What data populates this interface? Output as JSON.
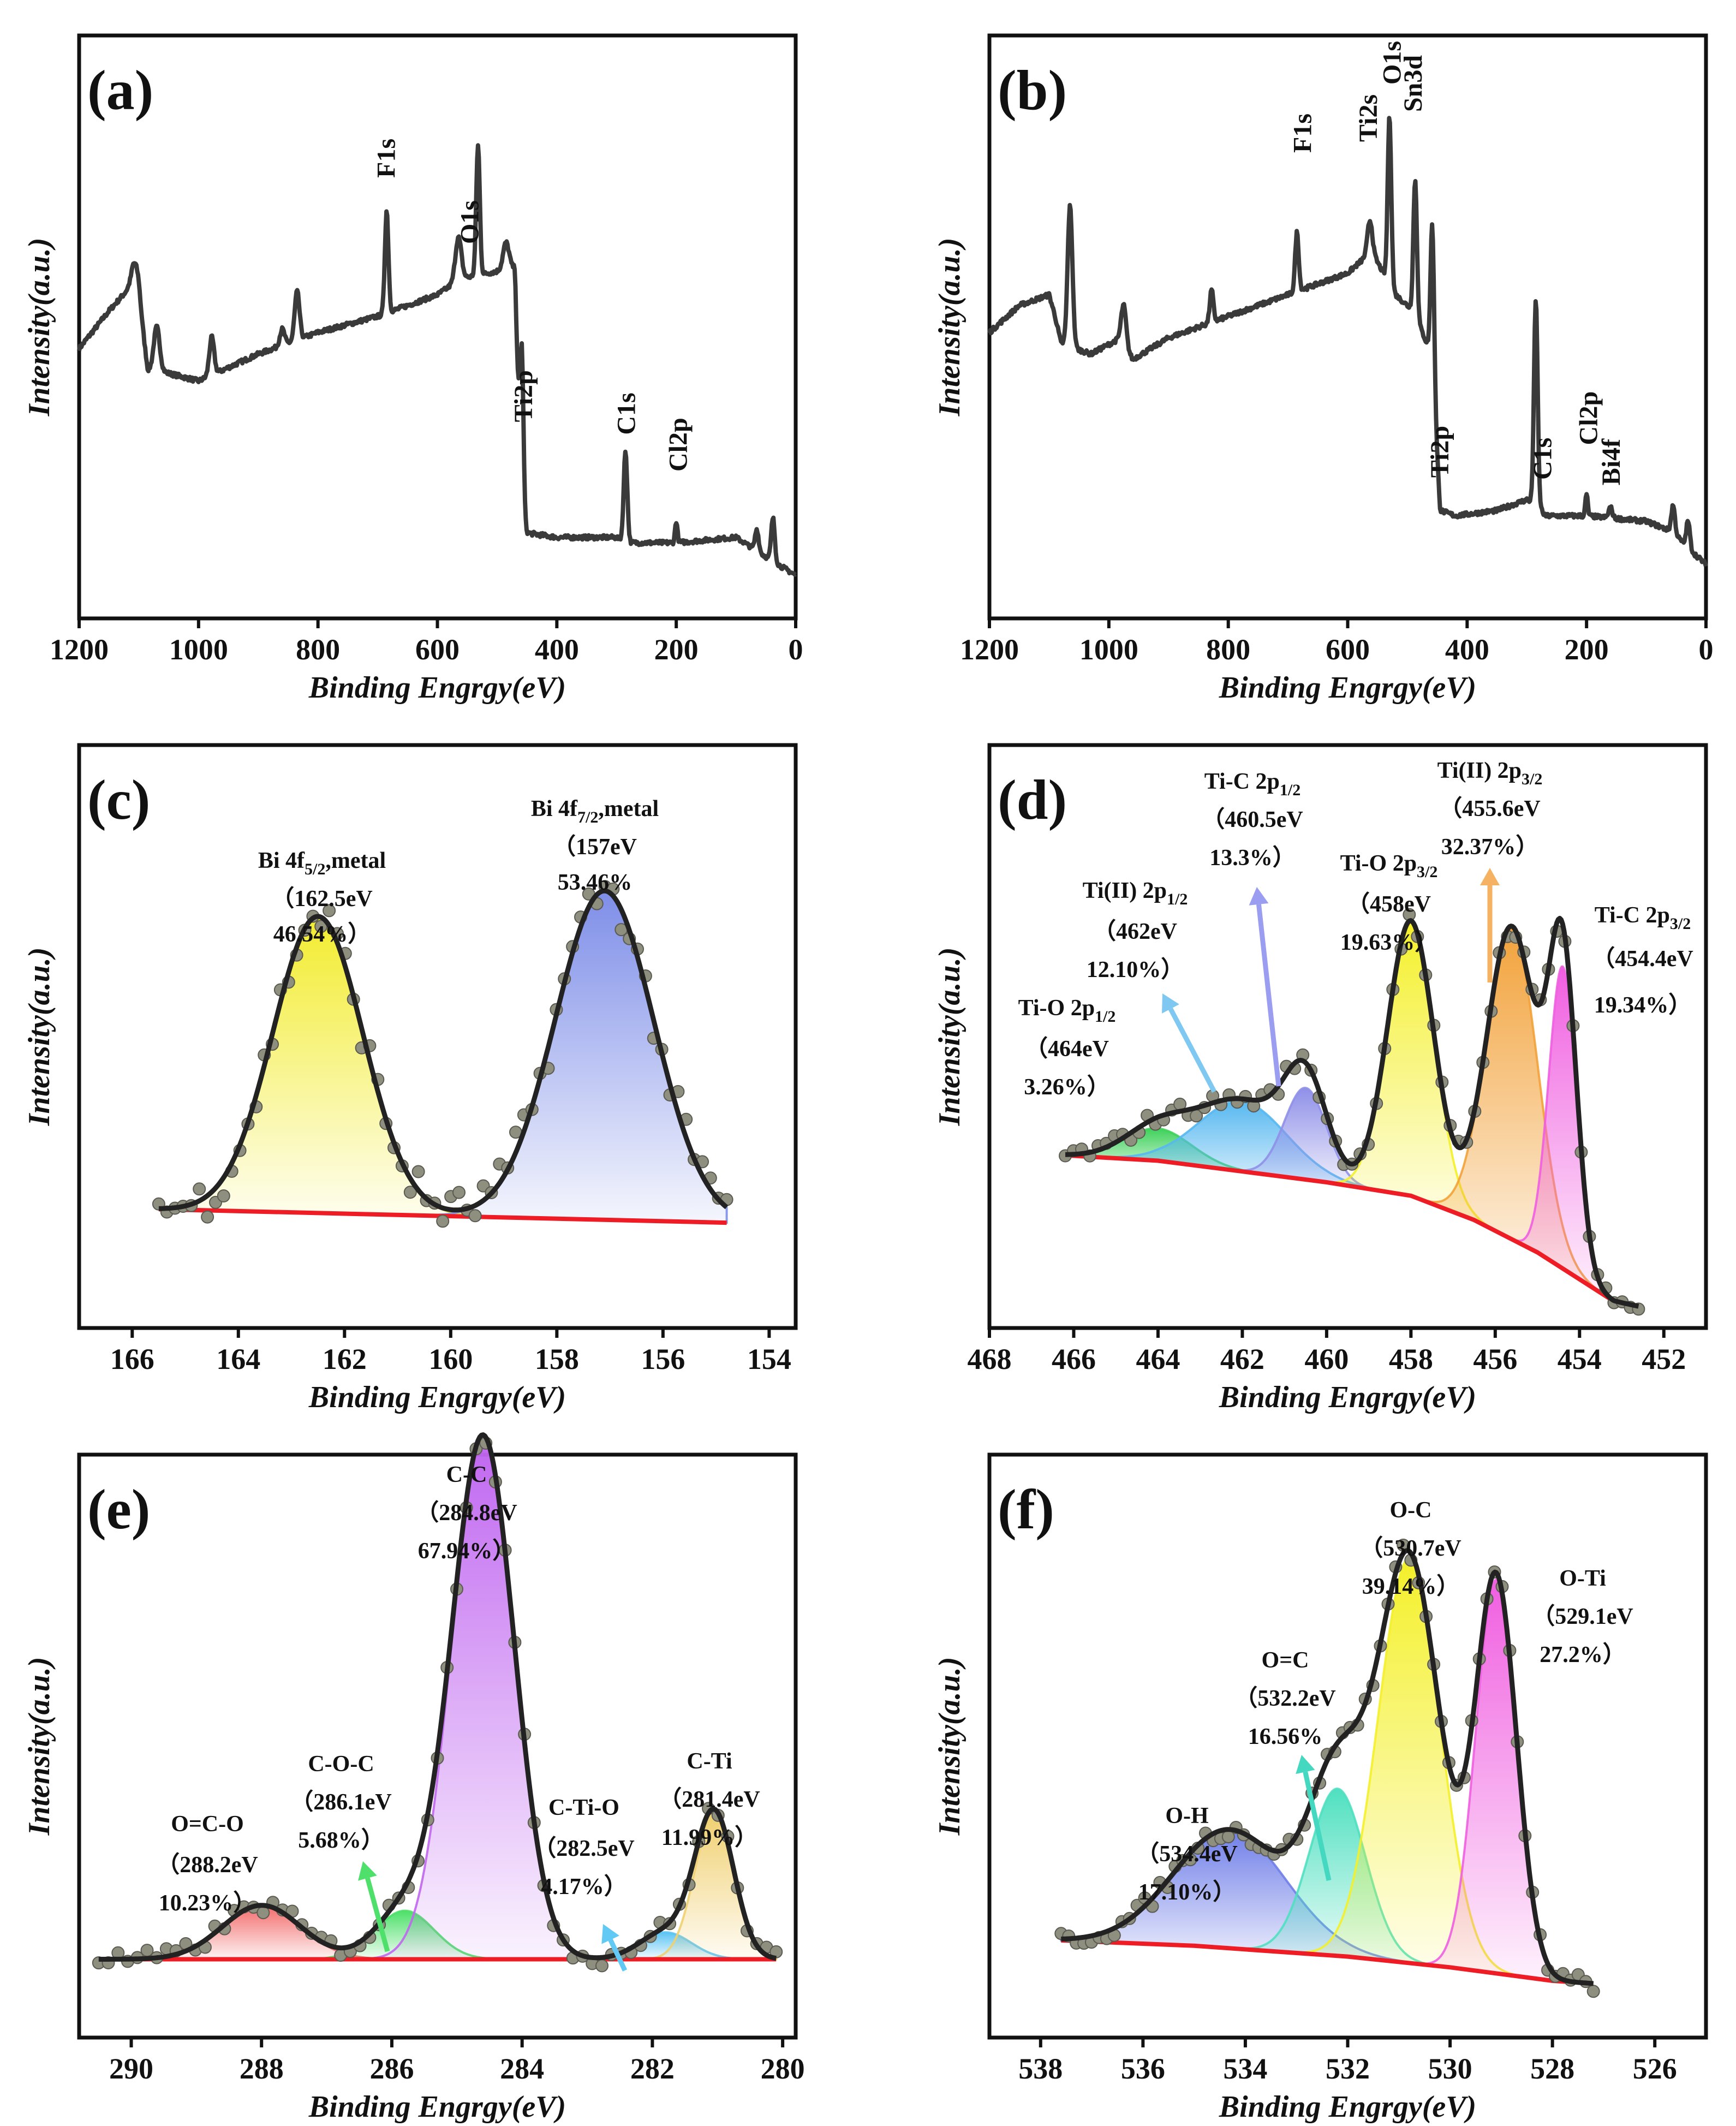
{
  "colors": {
    "survey": "#3a3a3a",
    "fit": "#222222",
    "baseline": "#ee1c25",
    "points": "#8f8f80"
  },
  "chart_data": [
    {
      "type": "line",
      "panel": "(a)",
      "xlabel": "Binding Engrgy(eV)",
      "ylabel": "Intensity(a.u.)",
      "xlim": [
        1200,
        0
      ],
      "ylim": [
        0,
        100
      ],
      "ticks": [
        1200,
        1000,
        800,
        600,
        400,
        200,
        0
      ],
      "tick_labels": [
        "1200",
        "1000",
        "800",
        "600",
        "400",
        "200",
        "0"
      ],
      "background": [
        [
          1200,
          48
        ],
        [
          1150,
          55
        ],
        [
          1110,
          60
        ],
        [
          1100,
          57
        ],
        [
          1085,
          44
        ],
        [
          1070,
          44
        ],
        [
          1000,
          42
        ],
        [
          900,
          47
        ],
        [
          800,
          51
        ],
        [
          700,
          54
        ],
        [
          600,
          58
        ],
        [
          560,
          61
        ],
        [
          470,
          63
        ],
        [
          460,
          14
        ],
        [
          400,
          13
        ],
        [
          300,
          13
        ],
        [
          285,
          12
        ],
        [
          200,
          12
        ],
        [
          100,
          13
        ],
        [
          30,
          8
        ],
        [
          0,
          6
        ]
      ],
      "peaks": [
        {
          "x": 1105,
          "h": 5,
          "w": 6
        },
        {
          "x": 1070,
          "h": 8,
          "w": 5
        },
        {
          "x": 978,
          "h": 7,
          "w": 4
        },
        {
          "x": 860,
          "h": 3,
          "w": 4
        },
        {
          "x": 835,
          "h": 9,
          "w": 4
        },
        {
          "x": 685,
          "h": 19,
          "w": 3
        },
        {
          "x": 565,
          "h": 8,
          "w": 5
        },
        {
          "x": 532,
          "h": 24,
          "w": 3
        },
        {
          "x": 485,
          "h": 5,
          "w": 5
        },
        {
          "x": 459,
          "h": 35,
          "w": 3
        },
        {
          "x": 285,
          "h": 17,
          "w": 3
        },
        {
          "x": 200,
          "h": 4,
          "w": 2
        },
        {
          "x": 65,
          "h": 4,
          "w": 3
        },
        {
          "x": 38,
          "h": 8,
          "w": 3
        }
      ],
      "peak_labels": [
        {
          "x": 685,
          "text": "F1s"
        },
        {
          "x": 545,
          "text": "O1s"
        },
        {
          "x": 455,
          "text": "Ti2p"
        },
        {
          "x": 283,
          "text": "C1s"
        },
        {
          "x": 196,
          "text": "Cl2p"
        }
      ]
    },
    {
      "type": "line",
      "panel": "(b)",
      "xlabel": "Binding Engrgy(eV)",
      "ylabel": "Intensity(a.u.)",
      "xlim": [
        1200,
        0
      ],
      "ylim": [
        0,
        100
      ],
      "ticks": [
        1200,
        1000,
        800,
        600,
        400,
        200,
        0
      ],
      "tick_labels": [
        "1200",
        "1000",
        "800",
        "600",
        "400",
        "200",
        "0"
      ],
      "background": [
        [
          1200,
          51
        ],
        [
          1150,
          56
        ],
        [
          1100,
          58
        ],
        [
          1090,
          54
        ],
        [
          1080,
          49
        ],
        [
          1030,
          47
        ],
        [
          980,
          50
        ],
        [
          960,
          46
        ],
        [
          900,
          50
        ],
        [
          800,
          54
        ],
        [
          700,
          58
        ],
        [
          600,
          62
        ],
        [
          560,
          66
        ],
        [
          520,
          58
        ],
        [
          490,
          55
        ],
        [
          460,
          47
        ],
        [
          445,
          18
        ],
        [
          420,
          17
        ],
        [
          350,
          18
        ],
        [
          300,
          20
        ],
        [
          280,
          19
        ],
        [
          270,
          17
        ],
        [
          200,
          17
        ],
        [
          100,
          16
        ],
        [
          55,
          14
        ],
        [
          30,
          11
        ],
        [
          0,
          8
        ]
      ],
      "peaks": [
        {
          "x": 1065,
          "h": 26,
          "w": 4
        },
        {
          "x": 975,
          "h": 7,
          "w": 4
        },
        {
          "x": 828,
          "h": 6,
          "w": 3
        },
        {
          "x": 685,
          "h": 11,
          "w": 3
        },
        {
          "x": 563,
          "h": 6,
          "w": 4
        },
        {
          "x": 530,
          "h": 31,
          "w": 3
        },
        {
          "x": 487,
          "h": 25,
          "w": 3
        },
        {
          "x": 458,
          "h": 27,
          "w": 3
        },
        {
          "x": 285,
          "h": 38,
          "w": 3
        },
        {
          "x": 200,
          "h": 4,
          "w": 2
        },
        {
          "x": 160,
          "h": 2,
          "w": 3
        },
        {
          "x": 55,
          "h": 5,
          "w": 3
        },
        {
          "x": 30,
          "h": 5,
          "w": 3
        }
      ],
      "peak_labels": [
        {
          "x": 675,
          "text": "F1s"
        },
        {
          "x": 565,
          "text": "Ti2s"
        },
        {
          "x": 525,
          "text": "O1s"
        },
        {
          "x": 490,
          "text": "Sn3d"
        },
        {
          "x": 445,
          "text": "Ti2p"
        },
        {
          "x": 273,
          "text": "C1s"
        },
        {
          "x": 196,
          "text": "Cl2p"
        },
        {
          "x": 158,
          "text": "Bi4f"
        }
      ]
    },
    {
      "type": "area",
      "panel": "(c)",
      "xlabel": "Binding Engrgy(eV)",
      "ylabel": "Intensity(a.u.)",
      "xlim": [
        167,
        153.5
      ],
      "ylim": [
        0,
        100
      ],
      "ticks": [
        166,
        164,
        162,
        160,
        158,
        156,
        154
      ],
      "tick_labels": [
        "166",
        "164",
        "162",
        "160",
        "158",
        "156",
        "154"
      ],
      "baseline": [
        [
          165.5,
          20
        ],
        [
          154.8,
          17.5
        ]
      ],
      "components": [
        {
          "name": "Bi 4f5/2,metal",
          "center": 162.5,
          "height": 55,
          "sigma": 0.85,
          "color": "#f2ec2e",
          "position_ev": "162.5eV",
          "percent": "46.54%"
        },
        {
          "name": "Bi 4f7/2,metal",
          "center": 157.1,
          "height": 61,
          "sigma": 0.93,
          "color": "#7e8ee8",
          "position_ev": "157eV",
          "percent": "53.46%"
        }
      ],
      "annotations": [
        {
          "main": "Bi 4f",
          "sub": "5/2",
          "tail": ",metal",
          "line2": "（162.5eV",
          "line3": "46.54%）"
        },
        {
          "main": "Bi 4f",
          "sub": "7/2",
          "tail": ",metal",
          "line2": "（157eV",
          "line3": "53.46%"
        }
      ]
    },
    {
      "type": "area",
      "panel": "(d)",
      "xlabel": "Binding Engrgy(eV)",
      "ylabel": "Intensity(a.u.)",
      "xlim": [
        468,
        451
      ],
      "ylim": [
        0,
        100
      ],
      "ticks": [
        468,
        466,
        464,
        462,
        460,
        458,
        456,
        454,
        452
      ],
      "tick_labels": [
        "468",
        "466",
        "464",
        "462",
        "460",
        "458",
        "456",
        "454",
        "452"
      ],
      "baseline": [
        [
          466.2,
          30
        ],
        [
          464,
          29
        ],
        [
          462,
          27
        ],
        [
          460,
          25
        ],
        [
          458,
          22.5
        ],
        [
          456.5,
          18
        ],
        [
          455,
          12
        ],
        [
          454,
          7
        ],
        [
          453.2,
          3
        ],
        [
          452.6,
          2
        ]
      ],
      "components": [
        {
          "name": "Ti-O 2p1/2",
          "center": 464.0,
          "height": 6,
          "sigma": 0.8,
          "color": "#3ed15a",
          "position_ev": "464eV",
          "percent": "3.26%"
        },
        {
          "name": "Ti(II) 2p1/2",
          "center": 462.0,
          "height": 13,
          "sigma": 1.05,
          "color": "#57b8f0",
          "position_ev": "462eV",
          "percent": "12.10%"
        },
        {
          "name": "Ti-C 2p1/2",
          "center": 460.5,
          "height": 17,
          "sigma": 0.5,
          "color": "#8f90e8",
          "position_ev": "460.5eV",
          "percent": "13.3%"
        },
        {
          "name": "Ti-O 2p3/2",
          "center": 458.0,
          "height": 51,
          "sigma": 0.55,
          "color": "#f4f02a",
          "position_ev": "458eV",
          "percent": "19.63%"
        },
        {
          "name": "Ti(II) 2p3/2",
          "center": 455.6,
          "height": 58,
          "sigma": 0.6,
          "color": "#f2a23a",
          "position_ev": "455.6eV",
          "percent": "32.37%"
        },
        {
          "name": "Ti-C 2p3/2",
          "center": 454.4,
          "height": 56,
          "sigma": 0.33,
          "color": "#f05ee0",
          "position_ev": "454.4eV",
          "percent": "19.34%"
        }
      ],
      "annotations": [
        {
          "main": "Ti-O 2p",
          "sub": "1/2",
          "line2": "（464eV",
          "line3": "3.26%）"
        },
        {
          "main": "Ti(II) 2p",
          "sub": "1/2",
          "line2": "（462eV",
          "line3": "12.10%）"
        },
        {
          "main": "Ti-C 2p",
          "sub": "1/2",
          "line2": "（460.5eV",
          "line3": "13.3%）"
        },
        {
          "main": "Ti-O 2p",
          "sub": "3/2",
          "line2": "（458eV",
          "line3": "19.63%）"
        },
        {
          "main": "Ti(II) 2p",
          "sub": "3/2",
          "line2": "（455.6eV",
          "line3": "32.37%）"
        },
        {
          "main": "Ti-C 2p",
          "sub": "3/2",
          "line2": "（454.4eV",
          "line3": "19.34%）"
        }
      ]
    },
    {
      "type": "area",
      "panel": "(e)",
      "xlabel": "Binding Engrgy(eV)",
      "ylabel": "Intensity(a.u.)",
      "xlim": [
        290.8,
        279.8
      ],
      "ylim": [
        0,
        100
      ],
      "ticks": [
        290,
        288,
        286,
        284,
        282,
        280
      ],
      "tick_labels": [
        "290",
        "288",
        "286",
        "284",
        "282",
        "280"
      ],
      "baseline": [
        [
          290.5,
          12.5
        ],
        [
          280.1,
          12.5
        ]
      ],
      "components": [
        {
          "name": "O=C-O",
          "center": 288.0,
          "height": 10,
          "sigma": 0.6,
          "color": "#f26b6b",
          "position_ev": "288.2eV",
          "percent": "10.23%"
        },
        {
          "name": "C-O-C",
          "center": 285.8,
          "height": 9,
          "sigma": 0.45,
          "color": "#4ee06a",
          "position_ev": "286.1eV",
          "percent": "5.68%"
        },
        {
          "name": "C-C",
          "center": 284.6,
          "height": 97,
          "sigma": 0.48,
          "color": "#c066f0",
          "position_ev": "284.8eV",
          "percent": "67.94%"
        },
        {
          "name": "C-Ti-O",
          "center": 281.8,
          "height": 5,
          "sigma": 0.4,
          "color": "#5cc4f4",
          "position_ev": "282.5eV",
          "percent": "4.17%"
        },
        {
          "name": "C-Ti",
          "center": 281.05,
          "height": 27,
          "sigma": 0.3,
          "color": "#f0d070",
          "position_ev": "281.4eV",
          "percent": "11.99%"
        }
      ],
      "annotations": [
        {
          "main": "O=C-O",
          "line2": "（288.2eV",
          "line3": "10.23%）"
        },
        {
          "main": "C-O-C",
          "line2": "（286.1eV",
          "line3": "5.68%）"
        },
        {
          "main": "C-C",
          "line2": "（284.8eV",
          "line3": "67.94%）"
        },
        {
          "main": "C-Ti-O",
          "line2": "（282.5eV",
          "line3": "4.17%）"
        },
        {
          "main": "C-Ti",
          "line2": "（281.4eV",
          "line3": "11.99%）"
        }
      ]
    },
    {
      "type": "area",
      "panel": "(f)",
      "xlabel": "Binding Engrgy(eV)",
      "ylabel": "Intensity(a.u.)",
      "xlim": [
        539,
        525
      ],
      "ylim": [
        0,
        100
      ],
      "ticks": [
        538,
        536,
        534,
        532,
        530,
        528,
        526
      ],
      "tick_labels": [
        "538",
        "536",
        "534",
        "532",
        "530",
        "528",
        "526"
      ],
      "baseline": [
        [
          537.6,
          16
        ],
        [
          535,
          15
        ],
        [
          532,
          13
        ],
        [
          530,
          11
        ],
        [
          528,
          8.5
        ],
        [
          527.2,
          8
        ]
      ],
      "components": [
        {
          "name": "O-H",
          "center": 534.3,
          "height": 22,
          "sigma": 1.1,
          "color": "#6f7ee8",
          "position_ev": "534.4eV",
          "percent": "17.10%"
        },
        {
          "name": "O=C",
          "center": 532.2,
          "height": 31,
          "sigma": 0.55,
          "color": "#4fe0c0",
          "position_ev": "532.2eV",
          "percent": "16.56%"
        },
        {
          "name": "O-C",
          "center": 530.8,
          "height": 75,
          "sigma": 0.6,
          "color": "#f4f02a",
          "position_ev": "530.7eV",
          "percent": "39.14%"
        },
        {
          "name": "O-Ti",
          "center": 529.1,
          "height": 73,
          "sigma": 0.4,
          "color": "#f05ee0",
          "position_ev": "529.1eV",
          "percent": "27.2%"
        }
      ],
      "annotations": [
        {
          "main": "O-H",
          "line2": "（534.4eV",
          "line3": "17.10%）"
        },
        {
          "main": "O=C",
          "line2": "（532.2eV",
          "line3": "16.56%"
        },
        {
          "main": "O-C",
          "line2": "（530.7eV",
          "line3": "39.14%）"
        },
        {
          "main": "O-Ti",
          "line2": "（529.1eV",
          "line3": "27.2%）"
        }
      ]
    }
  ]
}
